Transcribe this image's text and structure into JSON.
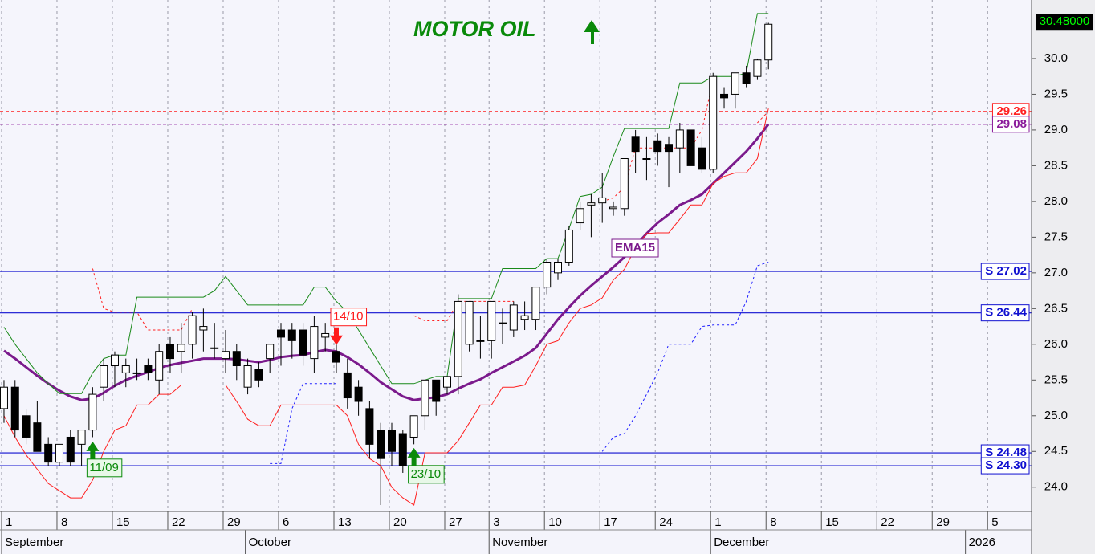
{
  "chart_data": {
    "type": "candlestick",
    "title": "MOTOR OIL",
    "xlim": [
      -0.36,
      92.75
    ],
    "ylim": [
      23.66,
      30.82
    ],
    "yticks": [
      {
        "value": 24.0,
        "label": "24.0"
      },
      {
        "value": 24.5,
        "label": "24.5"
      },
      {
        "value": 25.0,
        "label": "25.0"
      },
      {
        "value": 25.5,
        "label": "25.5"
      },
      {
        "value": 26.0,
        "label": "26.0"
      },
      {
        "value": 26.5,
        "label": "26.5"
      },
      {
        "value": 27.0,
        "label": "27.0"
      },
      {
        "value": 27.5,
        "label": "27.5"
      },
      {
        "value": 28.0,
        "label": "28.0"
      },
      {
        "value": 28.5,
        "label": "28.5"
      },
      {
        "value": 29.0,
        "label": "29.0"
      },
      {
        "value": 29.5,
        "label": "29.5"
      },
      {
        "value": 30.0,
        "label": "30.0"
      }
    ],
    "xticks": [
      {
        "value": 0,
        "label": "1"
      },
      {
        "value": 5,
        "label": "8"
      },
      {
        "value": 10,
        "label": "15"
      },
      {
        "value": 15,
        "label": "22"
      },
      {
        "value": 20,
        "label": "29"
      },
      {
        "value": 25,
        "label": "6"
      },
      {
        "value": 30,
        "label": "13"
      },
      {
        "value": 35,
        "label": "20"
      },
      {
        "value": 40,
        "label": "27"
      },
      {
        "value": 44,
        "label": "3"
      },
      {
        "value": 49,
        "label": "10"
      },
      {
        "value": 54,
        "label": "17"
      },
      {
        "value": 59,
        "label": "24"
      },
      {
        "value": 64,
        "label": "1"
      },
      {
        "value": 69,
        "label": "8"
      },
      {
        "value": 74,
        "label": "15"
      },
      {
        "value": 79,
        "label": "22"
      },
      {
        "value": 84,
        "label": "29"
      },
      {
        "value": 89,
        "label": "5"
      }
    ],
    "month_ticks": [
      {
        "value": 0,
        "label": "September"
      },
      {
        "value": 22,
        "label": "October"
      },
      {
        "value": 44,
        "label": "November"
      },
      {
        "value": 64,
        "label": "December"
      },
      {
        "value": 87,
        "label": "2026"
      }
    ],
    "grid": true,
    "x": [
      0,
      1,
      2,
      3,
      4,
      5,
      6,
      7,
      8,
      9,
      10,
      11,
      12,
      13,
      14,
      15,
      16,
      17,
      18,
      19,
      20,
      21,
      22,
      23,
      24,
      25,
      26,
      27,
      28,
      29,
      30,
      31,
      32,
      33,
      34,
      35,
      36,
      37,
      38,
      39,
      40,
      41,
      42,
      43,
      44,
      45,
      46,
      47,
      48,
      49,
      50,
      51,
      52,
      53,
      54,
      55,
      56,
      57,
      58,
      59,
      60,
      61,
      62,
      63,
      64,
      65,
      66,
      67,
      68,
      69
    ],
    "candles": {
      "open": [
        25.1,
        25.4,
        25.0,
        24.9,
        24.6,
        24.35,
        24.7,
        24.6,
        24.8,
        25.4,
        25.7,
        25.6,
        25.6,
        25.7,
        25.5,
        26.0,
        25.9,
        26.0,
        26.2,
        25.95,
        25.8,
        25.9,
        25.4,
        25.65,
        25.8,
        26.2,
        26.2,
        26.2,
        25.8,
        26.1,
        25.9,
        25.6,
        25.4,
        25.1,
        24.8,
        24.8,
        24.75,
        24.7,
        25.0,
        25.5,
        25.4,
        25.55,
        26.0,
        26.05,
        26.05,
        26.3,
        26.2,
        26.35,
        26.35,
        26.8,
        27.0,
        27.15,
        27.7,
        27.95,
        27.98,
        27.9,
        27.9,
        28.9,
        28.6,
        28.85,
        28.8,
        28.75,
        29.0,
        28.75,
        28.45,
        29.5,
        29.5,
        29.8,
        29.75,
        29.98
      ],
      "high": [
        25.5,
        25.5,
        25.1,
        25.2,
        24.7,
        24.6,
        24.8,
        24.8,
        25.4,
        25.8,
        25.9,
        25.8,
        25.8,
        25.8,
        26.0,
        26.1,
        26.3,
        26.45,
        26.5,
        26.3,
        26.2,
        26.0,
        25.8,
        25.75,
        26.0,
        26.3,
        26.3,
        26.3,
        26.4,
        26.3,
        26.0,
        25.8,
        25.5,
        25.2,
        24.9,
        24.9,
        24.8,
        25.0,
        25.5,
        25.5,
        25.55,
        26.7,
        26.6,
        26.4,
        26.6,
        26.5,
        26.6,
        26.6,
        26.8,
        27.2,
        27.2,
        27.65,
        28.0,
        28.1,
        28.4,
        28.0,
        28.6,
        29.0,
        28.9,
        28.95,
        28.9,
        29.1,
        29.0,
        28.9,
        29.8,
        29.6,
        29.8,
        29.9,
        30.0,
        30.5
      ],
      "low": [
        24.9,
        24.7,
        24.6,
        24.5,
        24.3,
        24.3,
        24.3,
        24.3,
        24.7,
        25.2,
        25.4,
        25.4,
        25.5,
        25.5,
        25.3,
        25.6,
        25.6,
        25.8,
        25.9,
        25.8,
        25.6,
        25.5,
        25.3,
        25.4,
        25.6,
        25.7,
        25.8,
        25.7,
        25.6,
        25.9,
        25.6,
        25.1,
        25.0,
        24.4,
        23.75,
        24.3,
        24.2,
        24.6,
        24.8,
        25.0,
        25.3,
        25.3,
        25.9,
        25.8,
        25.8,
        26.0,
        26.1,
        26.2,
        26.2,
        26.7,
        26.9,
        27.1,
        27.6,
        27.5,
        27.7,
        27.8,
        27.8,
        28.4,
        28.3,
        28.5,
        28.2,
        28.4,
        28.5,
        28.4,
        28.4,
        29.3,
        29.3,
        29.6,
        29.7,
        29.85
      ],
      "close": [
        25.4,
        24.8,
        24.7,
        24.5,
        24.35,
        24.6,
        24.35,
        24.8,
        25.3,
        25.7,
        25.85,
        25.7,
        25.6,
        25.6,
        25.9,
        25.8,
        26.0,
        26.4,
        26.25,
        25.95,
        25.9,
        25.7,
        25.7,
        25.5,
        26.0,
        26.1,
        26.05,
        25.85,
        26.25,
        26.15,
        25.75,
        25.25,
        25.2,
        24.6,
        24.4,
        24.5,
        24.3,
        25.0,
        25.5,
        25.2,
        25.55,
        26.6,
        26.6,
        26.05,
        26.6,
        26.3,
        26.55,
        26.4,
        26.8,
        27.15,
        27.15,
        27.6,
        27.9,
        27.98,
        28.05,
        27.92,
        28.6,
        28.7,
        28.6,
        28.7,
        28.7,
        29.0,
        28.5,
        28.45,
        29.75,
        29.45,
        29.8,
        29.65,
        29.98,
        30.48
      ]
    },
    "series": [
      {
        "name": "EMA15",
        "color": "#7b1a8c",
        "style": "solid",
        "width": 3,
        "values": [
          25.91,
          25.8,
          25.68,
          25.56,
          25.45,
          25.35,
          25.27,
          25.22,
          25.24,
          25.32,
          25.42,
          25.5,
          25.56,
          25.61,
          25.67,
          25.71,
          25.74,
          25.77,
          25.8,
          25.8,
          25.8,
          25.79,
          25.77,
          25.75,
          25.78,
          25.82,
          25.84,
          25.85,
          25.89,
          25.92,
          25.9,
          25.82,
          25.72,
          25.6,
          25.47,
          25.37,
          25.27,
          25.22,
          25.24,
          25.26,
          25.3,
          25.38,
          25.45,
          25.51,
          25.6,
          25.68,
          25.76,
          25.84,
          25.95,
          26.15,
          26.35,
          26.52,
          26.68,
          26.82,
          26.95,
          27.08,
          27.22,
          27.38,
          27.55,
          27.7,
          27.82,
          27.95,
          28.02,
          28.1,
          28.25,
          28.4,
          28.55,
          28.7,
          28.88,
          29.08
        ]
      },
      {
        "color": "#1a8a1a",
        "style": "solid",
        "width": 1,
        "values": [
          26.24,
          26.0,
          25.8,
          25.6,
          25.45,
          25.31,
          25.31,
          25.31,
          25.6,
          25.8,
          25.85,
          25.85,
          26.66,
          26.66,
          26.66,
          26.66,
          26.66,
          26.66,
          26.66,
          26.75,
          26.95,
          26.75,
          26.55,
          26.55,
          26.55,
          26.55,
          26.55,
          26.55,
          26.8,
          26.8,
          26.6,
          26.45,
          26.2,
          25.95,
          25.7,
          25.45,
          25.45,
          25.45,
          25.5,
          25.55,
          25.55,
          26.64,
          26.64,
          26.64,
          26.64,
          27.06,
          27.06,
          27.06,
          27.06,
          27.2,
          27.2,
          27.62,
          28.07,
          28.1,
          28.2,
          28.63,
          29.02,
          29.02,
          29.02,
          29.02,
          29.02,
          29.66,
          29.66,
          29.66,
          29.75,
          29.75,
          29.75,
          29.8,
          30.63,
          30.63
        ]
      },
      {
        "color": "#ff2020",
        "style": "solid",
        "width": 1,
        "values": [
          25.0,
          24.7,
          24.45,
          24.25,
          24.05,
          23.95,
          23.85,
          23.85,
          24.1,
          24.5,
          24.8,
          24.86,
          25.15,
          25.15,
          25.3,
          25.3,
          25.43,
          25.43,
          25.43,
          25.43,
          25.43,
          25.2,
          24.95,
          24.86,
          24.86,
          25.15,
          25.15,
          25.15,
          25.15,
          25.15,
          25.15,
          25.0,
          24.6,
          24.4,
          24.3,
          24.0,
          23.85,
          23.75,
          24.48,
          24.48,
          24.48,
          24.65,
          24.9,
          25.15,
          25.15,
          25.4,
          25.4,
          25.43,
          25.7,
          26.0,
          26.05,
          26.3,
          26.5,
          26.55,
          26.65,
          26.9,
          27.05,
          27.35,
          27.55,
          27.56,
          27.56,
          27.75,
          27.95,
          27.95,
          28.25,
          28.35,
          28.4,
          28.4,
          28.6,
          29.3
        ]
      },
      {
        "color": "#ff2020",
        "style": "dashed",
        "width": 1,
        "values": [
          null,
          null,
          null,
          null,
          null,
          null,
          null,
          null,
          27.06,
          26.5,
          26.45,
          26.45,
          26.45,
          26.2,
          26.2,
          26.2,
          26.2,
          26.5,
          null,
          null,
          null,
          null,
          null,
          null,
          null,
          null,
          null,
          null,
          null,
          null,
          null,
          null,
          null,
          null,
          null,
          null,
          null,
          26.4,
          26.33,
          26.33,
          26.33,
          26.6,
          26.6,
          26.6,
          26.6,
          26.6,
          26.6,
          null,
          null,
          null,
          null,
          null,
          null,
          null,
          28.0,
          28.05,
          28.2,
          28.75,
          28.75,
          28.75,
          28.75,
          28.75,
          28.75,
          29.0,
          29.7,
          null,
          null,
          null,
          29.1,
          29.26
        ]
      },
      {
        "color": "#2020ff",
        "style": "dashed",
        "width": 1,
        "values": [
          null,
          null,
          null,
          null,
          null,
          null,
          null,
          null,
          null,
          null,
          null,
          null,
          null,
          null,
          null,
          null,
          null,
          null,
          null,
          null,
          null,
          null,
          null,
          null,
          24.33,
          24.33,
          25.1,
          25.45,
          25.45,
          25.45,
          25.45,
          null,
          null,
          null,
          null,
          null,
          null,
          null,
          null,
          null,
          null,
          null,
          null,
          null,
          null,
          null,
          null,
          null,
          null,
          null,
          null,
          null,
          null,
          null,
          24.5,
          24.7,
          24.75,
          25.0,
          25.3,
          25.6,
          26.0,
          26.0,
          26.0,
          26.25,
          26.27,
          26.27,
          26.27,
          26.6,
          27.1,
          27.15
        ]
      }
    ],
    "hlines": [
      {
        "value": 29.26,
        "label": "29.26",
        "color": "#ff2020",
        "style": "dashed"
      },
      {
        "value": 29.08,
        "label": "29.08",
        "color": "#8a1a9a",
        "style": "dashed"
      },
      {
        "value": 27.02,
        "label": "S 27.02",
        "color": "#1010d0",
        "style": "solid"
      },
      {
        "value": 26.44,
        "label": "S 26.44",
        "color": "#1010d0",
        "style": "solid"
      },
      {
        "value": 24.48,
        "label": "S 24.48",
        "color": "#1010d0",
        "style": "solid"
      },
      {
        "value": 24.3,
        "label": "S 24.30",
        "color": "#1010d0",
        "style": "solid"
      }
    ],
    "annotations": [
      {
        "text": "11/09",
        "x": 8,
        "y": 24.64,
        "color": "#0a8a0a",
        "direction": "up"
      },
      {
        "text": "14/10",
        "x": 30,
        "y": 25.99,
        "color": "#ff1a1a",
        "direction": "down"
      },
      {
        "text": "23/10",
        "x": 37,
        "y": 24.55,
        "color": "#0a8a0a",
        "direction": "up"
      }
    ],
    "last_price": {
      "value": 30.48,
      "label": "30.48000"
    }
  }
}
